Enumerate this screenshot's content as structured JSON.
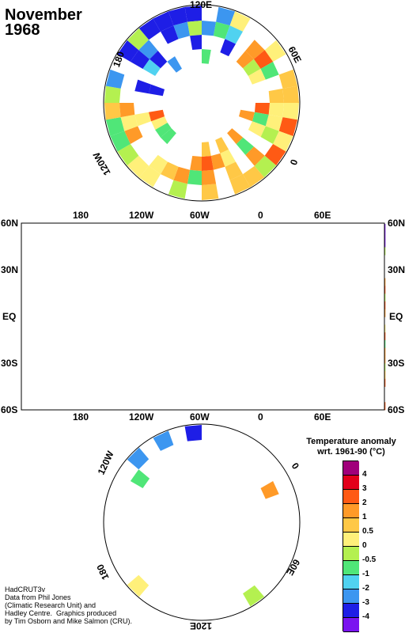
{
  "title": {
    "month": "November",
    "year": "1968"
  },
  "north_polar": {
    "labels": {
      "top": "120E",
      "left": "180",
      "right": "60E",
      "lower_left": "120W",
      "lower_right": "0"
    }
  },
  "main_map": {
    "top_lon_labels": [
      "180",
      "120W",
      "60W",
      "0",
      "60E"
    ],
    "bottom_lon_labels": [
      "180",
      "120W",
      "60W",
      "0",
      "60E"
    ],
    "lat_labels_left": [
      "60N",
      "30N",
      "EQ",
      "30S",
      "60S"
    ],
    "lat_labels_right": [
      "60N",
      "30N",
      "EQ",
      "30S",
      "60S"
    ]
  },
  "south_polar": {
    "labels": {
      "upper_left": "120W",
      "upper_right": "0",
      "lower_left": "180",
      "lower_right": "60E",
      "bottom": "120E"
    }
  },
  "legend": {
    "title_line1": "Temperature anomaly",
    "title_line2": "wrt. 1961-90  (°C)",
    "items": [
      {
        "label": "4",
        "color": "#a0007a"
      },
      {
        "label": "3",
        "color": "#e2001a"
      },
      {
        "label": "2",
        "color": "#ff5a14"
      },
      {
        "label": "1",
        "color": "#ff9a28"
      },
      {
        "label": "0.5",
        "color": "#ffc846"
      },
      {
        "label": "0",
        "color": "#fff07a"
      },
      {
        "label": "-0.5",
        "color": "#b4f050"
      },
      {
        "label": "-1",
        "color": "#50e678"
      },
      {
        "label": "-2",
        "color": "#50d2f0"
      },
      {
        "label": "-3",
        "color": "#3c96f0"
      },
      {
        "label": "-4",
        "color": "#1e1ee6"
      },
      {
        "label": "",
        "color": "#7a14f0"
      }
    ]
  },
  "credits": {
    "line1": "HadCRUT3v",
    "line2": "Data from Phil Jones",
    "line3": "(Climatic Research Unit) and",
    "line4": "Hadley Centre.  Graphics produced",
    "line5": "by Tim Osborn and Mike Salmon (CRU)."
  }
}
